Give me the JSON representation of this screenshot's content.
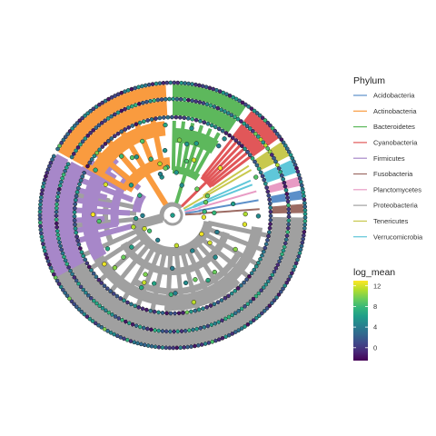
{
  "chart_data": {
    "type": "circular-phylogenetic-tree",
    "legend_phylum": {
      "title": "Phylum",
      "entries": [
        {
          "name": "Acidobacteria",
          "color": "#5b8fc9"
        },
        {
          "name": "Actinobacteria",
          "color": "#f99b3f"
        },
        {
          "name": "Bacteroidetes",
          "color": "#5db85c"
        },
        {
          "name": "Cyanobacteria",
          "color": "#e15759"
        },
        {
          "name": "Firmicutes",
          "color": "#a787c9"
        },
        {
          "name": "Fusobacteria",
          "color": "#9c6b63"
        },
        {
          "name": "Planctomycetes",
          "color": "#e89bc4"
        },
        {
          "name": "Proteobacteria",
          "color": "#a0a0a0"
        },
        {
          "name": "Tenericutes",
          "color": "#c8c84e"
        },
        {
          "name": "Verrucomicrobia",
          "color": "#5fc7d9"
        }
      ]
    },
    "legend_log_mean": {
      "title": "log_mean",
      "ticks": [
        "12",
        "8",
        "4",
        "0"
      ],
      "tick_values": [
        12,
        8,
        4,
        0
      ],
      "min": -2.5,
      "max": 13,
      "colors": [
        "#440154",
        "#482878",
        "#3e4989",
        "#31688e",
        "#26828e",
        "#1f9e89",
        "#35b779",
        "#6ece58",
        "#b5de2b",
        "#fde725"
      ]
    },
    "clades": [
      {
        "phylum": "Actinobacteria",
        "start": -151,
        "end": -93
      },
      {
        "phylum": "Bacteroidetes",
        "start": -90,
        "end": -56
      },
      {
        "phylum": "Cyanobacteria",
        "start": -53,
        "end": -36
      },
      {
        "phylum": "Tenericutes",
        "start": -34,
        "end": -27
      },
      {
        "phylum": "Verrucomicrobia",
        "start": -25,
        "end": -19
      },
      {
        "phylum": "Planctomycetes",
        "start": -17,
        "end": -13
      },
      {
        "phylum": "Acidobacteria",
        "start": -11,
        "end": -7
      },
      {
        "phylum": "Fusobacteria",
        "start": -5,
        "end": -1
      },
      {
        "phylum": "Proteobacteria",
        "start": 1,
        "end": 198
      },
      {
        "phylum": "Firmicutes",
        "start": 200,
        "end": 206
      }
    ]
  }
}
